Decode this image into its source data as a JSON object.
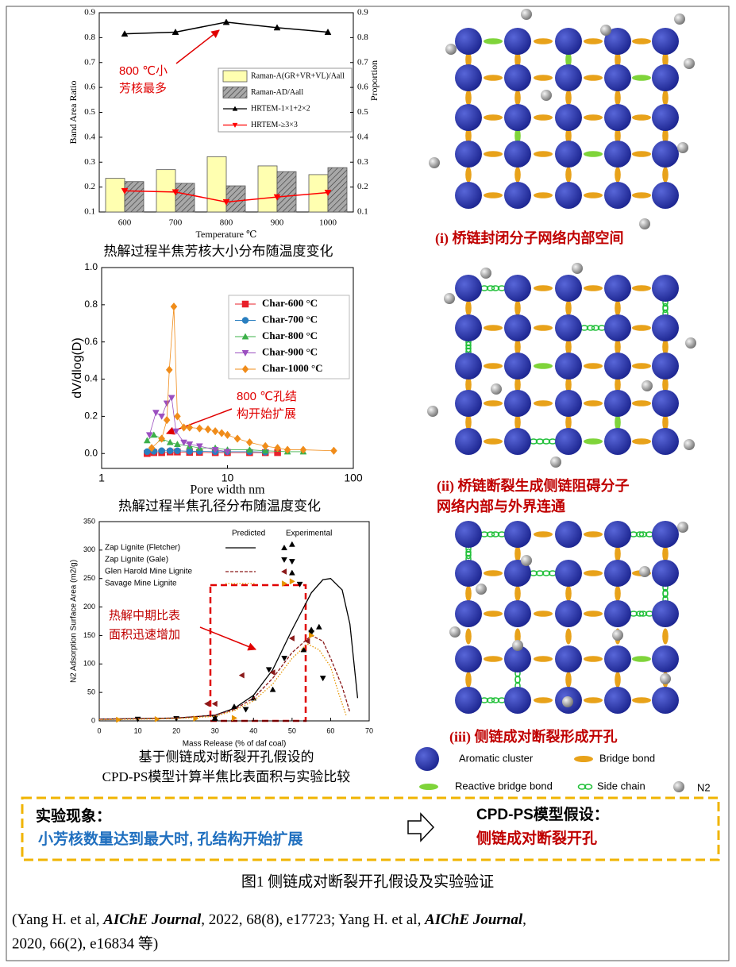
{
  "chart_data": [
    {
      "type": "bar",
      "ylabel": "Band Area Ratio",
      "y2label": "Proportion",
      "xlabel": "Temperature ℃",
      "categories": [
        "600",
        "700",
        "800",
        "900",
        "1000"
      ],
      "ylim": [
        0.1,
        0.9
      ],
      "yticks": [
        0.1,
        0.2,
        0.3,
        0.4,
        0.5,
        0.6,
        0.7,
        0.8,
        0.9
      ],
      "y2lim": [
        0.1,
        0.9
      ],
      "y2ticks": [
        0.1,
        0.2,
        0.3,
        0.4,
        0.5,
        0.6,
        0.7,
        0.8,
        0.9
      ],
      "series": [
        {
          "name": "Raman-A(GR+VR+VL)/Aall",
          "color": "#ffffb0",
          "mark": "bar",
          "values": [
            0.235,
            0.27,
            0.322,
            0.285,
            0.25
          ]
        },
        {
          "name": "Raman-AD/Aall",
          "color": "#a8a8a8",
          "mark": "bar",
          "pattern": "hatch",
          "values": [
            0.222,
            0.215,
            0.205,
            0.262,
            0.278
          ]
        },
        {
          "name": "HRTEM-1×1+2×2",
          "color": "#000000",
          "mark": "line",
          "marker": "^",
          "axis": "y2",
          "values": [
            0.815,
            0.822,
            0.862,
            0.84,
            0.822
          ]
        },
        {
          "name": "HRTEM-≥3×3",
          "color": "#ff0000",
          "mark": "line",
          "marker": "v",
          "axis": "y2",
          "values": [
            0.185,
            0.18,
            0.14,
            0.16,
            0.178
          ]
        }
      ],
      "annotation": [
        "800 ℃小",
        "芳核最多"
      ],
      "caption": [
        "热解过程半焦芳核大小分布随温度变化"
      ]
    },
    {
      "type": "line",
      "xlabel": "Pore width  nm",
      "ylabel": "dV/dlog(D)",
      "xscale": "log",
      "xlim": [
        1,
        100
      ],
      "xticks": [
        1,
        10,
        100
      ],
      "ylim": [
        -0.08,
        1.0
      ],
      "yticks": [
        {
          "value": 0,
          "label": "0.0"
        },
        0.2,
        0.4,
        0.6,
        0.8,
        {
          "value": 1,
          "label": "1.0"
        }
      ],
      "series": [
        {
          "name": "Char-600 °C",
          "color": "#e8202a",
          "marker": "s",
          "x": [
            2.3,
            2.6,
            3,
            3.5,
            4,
            5,
            6,
            8,
            10,
            15,
            20,
            25
          ],
          "values": [
            0.0,
            0.005,
            0.005,
            0.008,
            0.008,
            0.006,
            0.006,
            0.005,
            0.005,
            0.005,
            0.005,
            0.005
          ]
        },
        {
          "name": "Char-700 °C",
          "color": "#2a7fc0",
          "marker": "o",
          "x": [
            2.3,
            2.6,
            3,
            3.5,
            4,
            5,
            6,
            8,
            10,
            15,
            20
          ],
          "values": [
            0.01,
            0.012,
            0.015,
            0.015,
            0.015,
            0.012,
            0.012,
            0.01,
            0.01,
            0.01,
            0.008
          ]
        },
        {
          "name": "Char-800 °C",
          "color": "#3cb04a",
          "marker": "^",
          "x": [
            2.3,
            2.6,
            3,
            3.5,
            4,
            5,
            6,
            8,
            10,
            15,
            20,
            30,
            40
          ],
          "values": [
            0.07,
            0.1,
            0.08,
            0.06,
            0.05,
            0.04,
            0.03,
            0.03,
            0.02,
            0.02,
            0.015,
            0.01,
            0.01
          ]
        },
        {
          "name": "Char-900 °C",
          "color": "#9b4fc0",
          "marker": "v",
          "x": [
            2.4,
            2.7,
            3,
            3.3,
            3.6,
            3.9,
            4.5,
            5,
            6,
            8,
            10
          ],
          "values": [
            0.1,
            0.22,
            0.2,
            0.27,
            0.3,
            0.12,
            0.06,
            0.05,
            0.04,
            0.02,
            0.01
          ]
        },
        {
          "name": "Char-1000 °C",
          "color": "#f08c1a",
          "marker": "D",
          "x": [
            2.5,
            3,
            3.3,
            3.45,
            3.75,
            4,
            4.5,
            5,
            6,
            7,
            8,
            9,
            10,
            12,
            15,
            20,
            25,
            30,
            40,
            70
          ],
          "values": [
            0.03,
            0.08,
            0.18,
            0.45,
            0.79,
            0.2,
            0.14,
            0.14,
            0.135,
            0.13,
            0.12,
            0.11,
            0.1,
            0.08,
            0.06,
            0.04,
            0.03,
            0.02,
            0.02,
            0.015
          ]
        }
      ],
      "annotation": [
        "800 ℃孔结",
        "构开始扩展"
      ],
      "caption": [
        "热解过程半焦孔径分布随温度变化"
      ]
    },
    {
      "type": "line",
      "xlabel": "Mass Release (% of daf coal)",
      "ylabel": "N2 Adsorption Surface Area  (m2/g)",
      "xlim": [
        0,
        70
      ],
      "xticks": [
        0,
        10,
        20,
        30,
        40,
        50,
        60,
        70
      ],
      "ylim": [
        0,
        350
      ],
      "yticks": [
        0,
        50,
        100,
        150,
        200,
        250,
        300,
        350
      ],
      "headers": [
        "Predicted",
        "Experimental"
      ],
      "series": [
        {
          "name": "Zap Lignite (Fletcher)",
          "color": "#000000",
          "marker": "^",
          "dash": "solid",
          "predicted_x": [
            0,
            10,
            20,
            30,
            35,
            40,
            45,
            50,
            55,
            58,
            60,
            63,
            65,
            67
          ],
          "predicted": [
            3,
            4,
            5,
            10,
            22,
            45,
            90,
            160,
            225,
            248,
            250,
            230,
            170,
            40
          ],
          "experimental_x": [
            30,
            35,
            40,
            45,
            50,
            50,
            53,
            55,
            57
          ],
          "experimental": [
            5,
            25,
            40,
            55,
            310,
            260,
            125,
            160,
            165
          ]
        },
        {
          "name": "Zap Lignite (Gale)",
          "color": "#000000",
          "marker": "v",
          "experimental_x": [
            10,
            20,
            30,
            38,
            44,
            48,
            50,
            52,
            55,
            58
          ],
          "experimental": [
            3,
            4,
            5,
            20,
            90,
            110,
            280,
            240,
            155,
            75
          ]
        },
        {
          "name": "Glen Harold Mine Lignite",
          "color": "#8b1a1a",
          "marker": "<",
          "dash": "dashed",
          "predicted_x": [
            0,
            10,
            20,
            30,
            35,
            40,
            45,
            50,
            55,
            58,
            60,
            63,
            65
          ],
          "predicted": [
            3,
            4,
            5,
            10,
            20,
            40,
            75,
            120,
            150,
            140,
            110,
            60,
            15
          ],
          "experimental_x": [
            28,
            30,
            37,
            45,
            50,
            54
          ],
          "experimental": [
            30,
            30,
            80,
            85,
            145,
            140
          ]
        },
        {
          "name": "Savage Mine Lignite",
          "color": "#e69500",
          "marker": ">",
          "dash": "dotted",
          "predicted_x": [
            0,
            10,
            20,
            30,
            35,
            40,
            45,
            50,
            54,
            57,
            60,
            62,
            64
          ],
          "predicted": [
            2,
            3,
            4,
            8,
            18,
            35,
            65,
            110,
            135,
            125,
            95,
            50,
            10
          ],
          "experimental_x": [
            5,
            15,
            25,
            35,
            50,
            55
          ],
          "experimental": [
            2,
            3,
            4,
            5,
            245,
            150
          ]
        }
      ],
      "annotation": [
        "热解中期比表",
        "面积迅速增加"
      ],
      "caption": [
        "基于侧链成对断裂开孔假设的",
        "CPD-PS模型计算半焦比表面积与实验比较"
      ]
    }
  ],
  "diagrams": {
    "captions": [
      [
        "(i) 桥链封闭分子网络内部空间"
      ],
      [
        "(ii)  桥链断裂生成侧链阻碍分子",
        "网络内部与外界连通"
      ],
      [
        "(iii) 侧链成对断裂形成开孔"
      ]
    ],
    "legend": [
      "Aromatic cluster",
      "Bridge bond",
      "Reactive bridge bond",
      "Side chain",
      "N2"
    ]
  },
  "box": {
    "left_title": "实验现象：",
    "left_text": "小芳核数量达到最大时, 孔结构开始扩展",
    "right_title": "CPD-PS模型假设：",
    "right_text": "侧链成对断裂开孔"
  },
  "figure_caption": "图1  侧链成对断裂开孔假设及实验验证",
  "reference": {
    "line1": [
      "(Yang H. et al, ",
      "AIChE Journal",
      ", 2022, 68(8), e17723; Yang H. et al, ",
      "AIChE Journal",
      ","
    ],
    "line2": "2020, 66(2), e16834 等)"
  }
}
